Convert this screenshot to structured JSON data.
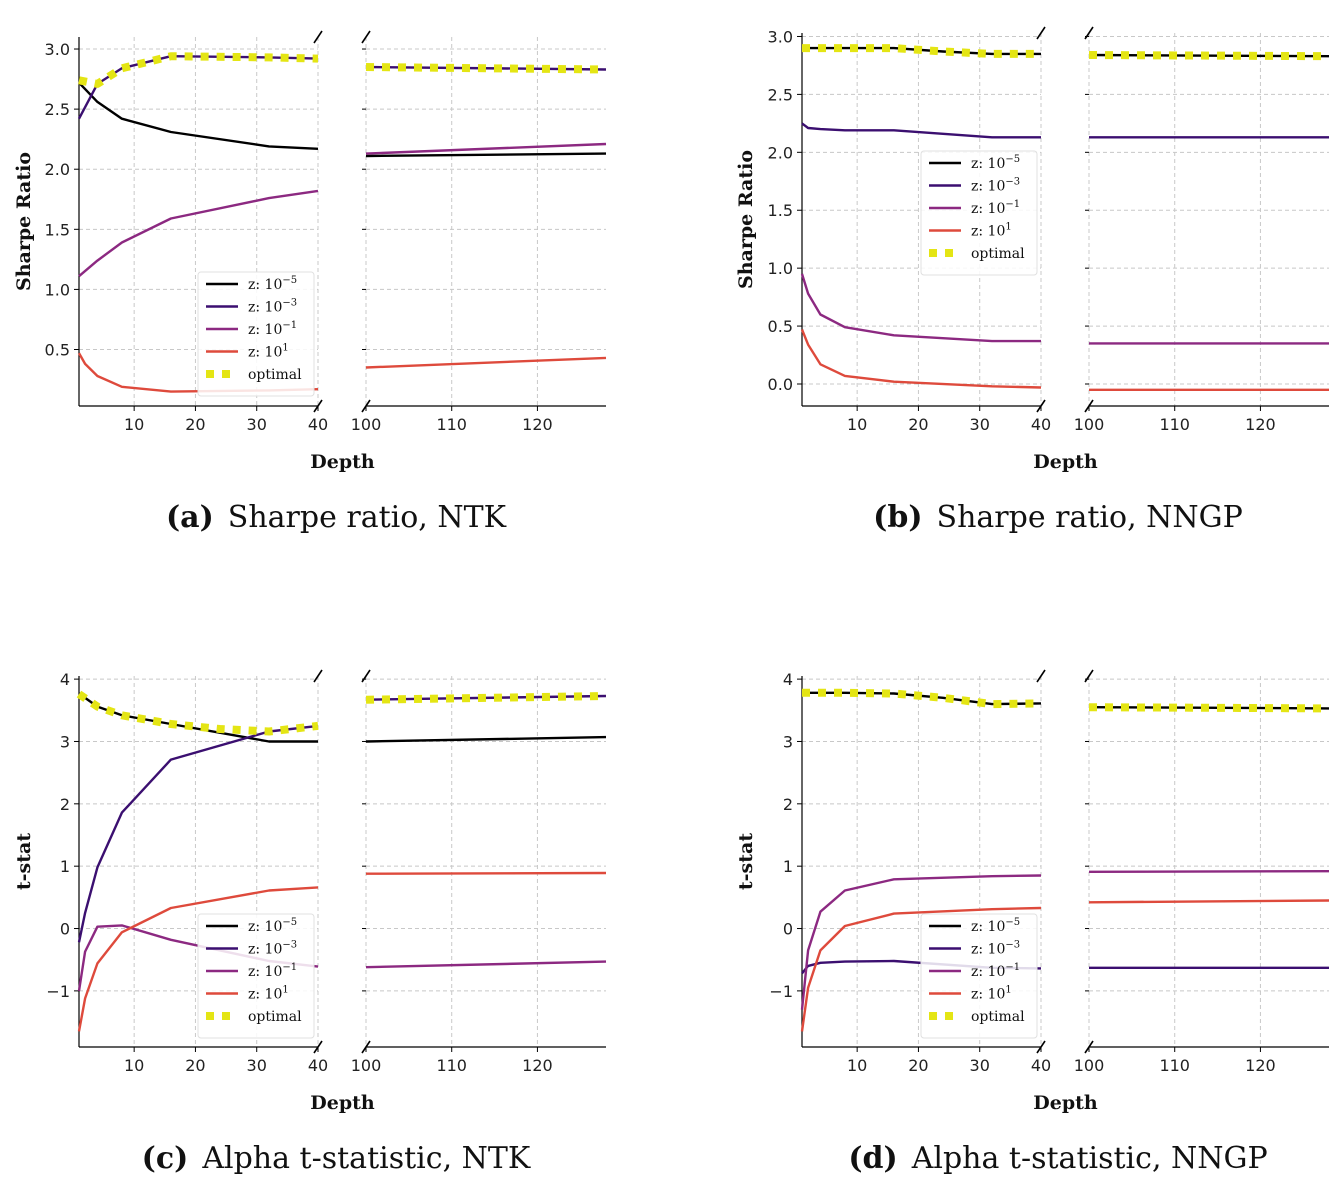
{
  "colors": {
    "z_1e-5": "#000000",
    "z_1e-3": "#3b0f70",
    "z_1e-1": "#8c2981",
    "z_1e1": "#de4a3c",
    "optimal": "#e4e514",
    "grid": "#c8c8c8"
  },
  "legend_labels": {
    "z_1e-5": {
      "base": "z: 10",
      "exp": "−5"
    },
    "z_1e-3": {
      "base": "z: 10",
      "exp": "−3"
    },
    "z_1e-1": {
      "base": "z: 10",
      "exp": "−1"
    },
    "z_1e1": {
      "base": "z: 10",
      "exp": "1"
    },
    "optimal": {
      "base": "optimal",
      "exp": ""
    }
  },
  "chart_data": [
    {
      "id": "a",
      "type": "line",
      "caption_tag": "(a)",
      "caption": "Sharpe ratio, NTK",
      "xlabel": "Depth",
      "ylabel": "Sharpe Ratio",
      "broken_x_axis": true,
      "x_ranges": [
        [
          1,
          40
        ],
        [
          100,
          128
        ]
      ],
      "x_ticks": [
        [
          10,
          20,
          30,
          40
        ],
        [
          100,
          110,
          120
        ]
      ],
      "ylim": [
        0.03,
        3.1
      ],
      "y_ticks": [
        0.5,
        1.0,
        1.5,
        2.0,
        2.5,
        3.0
      ],
      "y_tick_labels": [
        "0.5",
        "1.0",
        "1.5",
        "2.0",
        "2.5",
        "3.0"
      ],
      "grid": true,
      "legend_position": "lower-right of left panel",
      "series": [
        {
          "key": "z_1e-5",
          "style": "solid",
          "x": [
            1,
            4,
            8,
            16,
            32,
            40,
            100,
            128
          ],
          "y": [
            2.72,
            2.56,
            2.42,
            2.31,
            2.19,
            2.17,
            2.11,
            2.13
          ]
        },
        {
          "key": "z_1e-3",
          "style": "solid",
          "x": [
            1,
            4,
            8,
            16,
            32,
            40,
            100,
            128
          ],
          "y": [
            2.42,
            2.71,
            2.84,
            2.94,
            2.93,
            2.92,
            2.85,
            2.83
          ]
        },
        {
          "key": "z_1e-1",
          "style": "solid",
          "x": [
            1,
            4,
            8,
            16,
            32,
            40,
            100,
            128
          ],
          "y": [
            1.11,
            1.24,
            1.39,
            1.59,
            1.76,
            1.82,
            2.13,
            2.21
          ]
        },
        {
          "key": "z_1e1",
          "style": "solid",
          "x": [
            1,
            2,
            4,
            8,
            16,
            32,
            40,
            100,
            128
          ],
          "y": [
            0.47,
            0.38,
            0.28,
            0.19,
            0.15,
            0.16,
            0.17,
            0.35,
            0.43
          ]
        },
        {
          "key": "optimal",
          "style": "dotted",
          "x": [
            1,
            4,
            8,
            16,
            32,
            40,
            100,
            128
          ],
          "y": [
            2.74,
            2.71,
            2.84,
            2.94,
            2.93,
            2.92,
            2.85,
            2.83
          ]
        }
      ]
    },
    {
      "id": "b",
      "type": "line",
      "caption_tag": "(b)",
      "caption": "Sharpe ratio, NNGP",
      "xlabel": "Depth",
      "ylabel": "Sharpe Ratio",
      "broken_x_axis": true,
      "x_ranges": [
        [
          1,
          40
        ],
        [
          100,
          128
        ]
      ],
      "x_ticks": [
        [
          10,
          20,
          30,
          40
        ],
        [
          100,
          110,
          120
        ]
      ],
      "ylim": [
        -0.19,
        3.03
      ],
      "y_ticks": [
        0.0,
        0.5,
        1.0,
        1.5,
        2.0,
        2.5,
        3.0
      ],
      "y_tick_labels": [
        "0.0",
        "0.5",
        "1.0",
        "1.5",
        "2.0",
        "2.5",
        "3.0"
      ],
      "grid": true,
      "legend_position": "center of left panel",
      "series": [
        {
          "key": "z_1e-5",
          "style": "solid",
          "x": [
            1,
            4,
            8,
            16,
            24,
            32,
            40,
            100,
            128
          ],
          "y": [
            2.9,
            2.9,
            2.9,
            2.9,
            2.87,
            2.85,
            2.85,
            2.84,
            2.83
          ]
        },
        {
          "key": "z_1e-3",
          "style": "solid",
          "x": [
            1,
            2,
            4,
            8,
            16,
            32,
            40,
            100,
            128
          ],
          "y": [
            2.25,
            2.21,
            2.2,
            2.19,
            2.19,
            2.13,
            2.13,
            2.13,
            2.13
          ]
        },
        {
          "key": "z_1e-1",
          "style": "solid",
          "x": [
            1,
            2,
            4,
            8,
            16,
            32,
            40,
            100,
            128
          ],
          "y": [
            0.95,
            0.78,
            0.6,
            0.49,
            0.42,
            0.37,
            0.37,
            0.35,
            0.35
          ]
        },
        {
          "key": "z_1e1",
          "style": "solid",
          "x": [
            1,
            2,
            4,
            8,
            16,
            32,
            40,
            100,
            128
          ],
          "y": [
            0.47,
            0.34,
            0.17,
            0.07,
            0.02,
            -0.02,
            -0.03,
            -0.05,
            -0.05
          ]
        },
        {
          "key": "optimal",
          "style": "dotted",
          "x": [
            1,
            4,
            8,
            16,
            24,
            32,
            40,
            100,
            128
          ],
          "y": [
            2.9,
            2.9,
            2.9,
            2.9,
            2.87,
            2.85,
            2.85,
            2.84,
            2.83
          ]
        }
      ]
    },
    {
      "id": "c",
      "type": "line",
      "caption_tag": "(c)",
      "caption": "Alpha t-statistic, NTK",
      "xlabel": "Depth",
      "ylabel": "t-stat",
      "broken_x_axis": true,
      "x_ranges": [
        [
          1,
          40
        ],
        [
          100,
          128
        ]
      ],
      "x_ticks": [
        [
          10,
          20,
          30,
          40
        ],
        [
          100,
          110,
          120
        ]
      ],
      "ylim": [
        -1.9,
        4.05
      ],
      "y_ticks": [
        -1,
        0,
        1,
        2,
        3,
        4
      ],
      "y_tick_labels": [
        "−1",
        "0",
        "1",
        "2",
        "3",
        "4"
      ],
      "grid": true,
      "legend_position": "lower-right of left panel",
      "series": [
        {
          "key": "z_1e-5",
          "style": "solid",
          "x": [
            1,
            4,
            8,
            16,
            32,
            40,
            100,
            128
          ],
          "y": [
            3.77,
            3.56,
            3.42,
            3.28,
            3.0,
            3.0,
            3.0,
            3.07
          ]
        },
        {
          "key": "z_1e-3",
          "style": "solid",
          "x": [
            1,
            2,
            4,
            8,
            16,
            32,
            40,
            100,
            128
          ],
          "y": [
            -0.22,
            0.25,
            0.98,
            1.86,
            2.71,
            3.16,
            3.25,
            3.67,
            3.73
          ]
        },
        {
          "key": "z_1e-1",
          "style": "solid",
          "x": [
            1,
            2,
            4,
            8,
            16,
            32,
            40,
            100,
            128
          ],
          "y": [
            -1.0,
            -0.37,
            0.03,
            0.05,
            -0.18,
            -0.52,
            -0.61,
            -0.62,
            -0.53
          ]
        },
        {
          "key": "z_1e1",
          "style": "solid",
          "x": [
            1,
            2,
            4,
            8,
            16,
            32,
            40,
            100,
            128
          ],
          "y": [
            -1.65,
            -1.12,
            -0.56,
            -0.06,
            0.33,
            0.61,
            0.66,
            0.88,
            0.89
          ]
        },
        {
          "key": "optimal",
          "style": "dotted",
          "x": [
            1,
            4,
            8,
            16,
            24,
            32,
            40,
            100,
            128
          ],
          "y": [
            3.76,
            3.56,
            3.42,
            3.28,
            3.2,
            3.16,
            3.25,
            3.67,
            3.73
          ]
        }
      ]
    },
    {
      "id": "d",
      "type": "line",
      "caption_tag": "(d)",
      "caption": "Alpha t-statistic, NNGP",
      "xlabel": "Depth",
      "ylabel": "t-stat",
      "broken_x_axis": true,
      "x_ranges": [
        [
          1,
          40
        ],
        [
          100,
          128
        ]
      ],
      "x_ticks": [
        [
          10,
          20,
          30,
          40
        ],
        [
          100,
          110,
          120
        ]
      ],
      "ylim": [
        -1.9,
        4.05
      ],
      "y_ticks": [
        -1,
        0,
        1,
        2,
        3,
        4
      ],
      "y_tick_labels": [
        "−1",
        "0",
        "1",
        "2",
        "3",
        "4"
      ],
      "grid": true,
      "legend_position": "lower-right of left panel",
      "series": [
        {
          "key": "z_1e-5",
          "style": "solid",
          "x": [
            1,
            4,
            8,
            16,
            24,
            32,
            40,
            100,
            128
          ],
          "y": [
            3.78,
            3.78,
            3.78,
            3.77,
            3.7,
            3.6,
            3.61,
            3.55,
            3.53
          ]
        },
        {
          "key": "z_1e-3",
          "style": "solid",
          "x": [
            1,
            2,
            4,
            8,
            16,
            32,
            40,
            100,
            128
          ],
          "y": [
            -0.72,
            -0.6,
            -0.55,
            -0.53,
            -0.52,
            -0.63,
            -0.64,
            -0.63,
            -0.63
          ]
        },
        {
          "key": "z_1e-1",
          "style": "solid",
          "x": [
            1,
            2,
            4,
            8,
            16,
            32,
            40,
            100,
            128
          ],
          "y": [
            -1.3,
            -0.35,
            0.27,
            0.61,
            0.79,
            0.84,
            0.85,
            0.91,
            0.92
          ]
        },
        {
          "key": "z_1e1",
          "style": "solid",
          "x": [
            1,
            2,
            4,
            8,
            16,
            32,
            40,
            100,
            128
          ],
          "y": [
            -1.65,
            -0.95,
            -0.35,
            0.04,
            0.24,
            0.31,
            0.33,
            0.42,
            0.45
          ]
        },
        {
          "key": "optimal",
          "style": "dotted",
          "x": [
            1,
            4,
            8,
            16,
            24,
            32,
            40,
            100,
            128
          ],
          "y": [
            3.78,
            3.78,
            3.78,
            3.77,
            3.7,
            3.6,
            3.61,
            3.55,
            3.53
          ]
        }
      ]
    }
  ]
}
